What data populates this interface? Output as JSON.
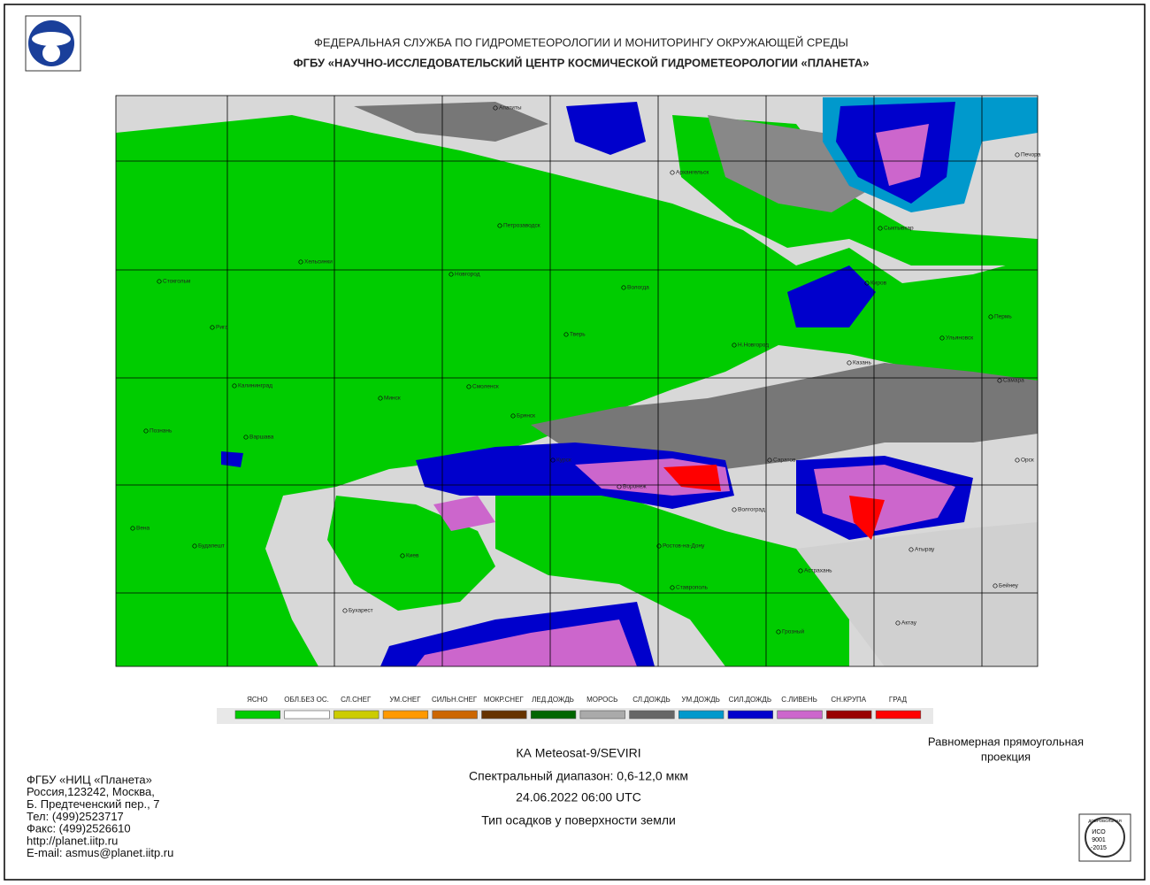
{
  "header": {
    "line1": "ФЕДЕРАЛЬНАЯ СЛУЖБА ПО ГИДРОМЕТЕОРОЛОГИИ И МОНИТОРИНГУ ОКРУЖАЮЩЕЙ СРЕДЫ",
    "line2": "ФГБУ «НАУЧНО-ИССЛЕДОВАТЕЛЬСКИЙ ЦЕНТР КОСМИЧЕСКОЙ ГИДРОМЕТЕОРОЛОГИИ «ПЛАНЕТА»"
  },
  "map": {
    "cities": [
      "Апатиты",
      "Архангельск",
      "Петрозаводск",
      "Вологда",
      "Сыктывкар",
      "Стокгольм",
      "Хельсинки",
      "Новгород",
      "Тверь",
      "Н.Новгород",
      "Киров",
      "Пермь",
      "Казань",
      "Калининград",
      "Минск",
      "Смоленск",
      "Брянск",
      "Ульяновск",
      "Самара",
      "Курск",
      "Воронеж",
      "Саратов",
      "Варшава",
      "Познань",
      "Волгоград",
      "Киев",
      "Астрахань",
      "Атырау",
      "Ростов-на-Дону",
      "Бухарест",
      "Грозный",
      "Актау",
      "Бейнеу",
      "Вена",
      "Будапешт",
      "Ставрополь",
      "Печора",
      "Рига",
      "Орск"
    ]
  },
  "legend": [
    {
      "label": "ЯСНО",
      "color": "#00cc00"
    },
    {
      "label": "ОБЛ.БЕЗ ОС.",
      "color": "#ffffff"
    },
    {
      "label": "СЛ.СНЕГ",
      "color": "#cccc00"
    },
    {
      "label": "УМ.СНЕГ",
      "color": "#ff9900"
    },
    {
      "label": "СИЛЬН.СНЕГ",
      "color": "#cc6600"
    },
    {
      "label": "МОКР.СНЕГ",
      "color": "#663300"
    },
    {
      "label": "ЛЕД.ДОЖДЬ",
      "color": "#006600"
    },
    {
      "label": "МОРОСЬ",
      "color": "#aaaaaa"
    },
    {
      "label": "СЛ.ДОЖДЬ",
      "color": "#666666"
    },
    {
      "label": "УМ.ДОЖДЬ",
      "color": "#0099cc"
    },
    {
      "label": "СИЛ.ДОЖДЬ",
      "color": "#0000cc"
    },
    {
      "label": "С.ЛИВЕНЬ",
      "color": "#cc66cc"
    },
    {
      "label": "СН.КРУПА",
      "color": "#990000"
    },
    {
      "label": "ГРАД",
      "color": "#ff0000"
    }
  ],
  "caption": {
    "satellite": "КА Meteosat-9/SEVIRI",
    "range": "Спектральный диапазон: 0,6-12,0 мкм",
    "datetime": "24.06.2022 06:00 UTC",
    "product": "Тип осадков у поверхности земли"
  },
  "projection": [
    "Равномерная прямоугольная",
    "проекция"
  ],
  "contacts": [
    "ФГБУ «НИЦ «Планета»",
    "Россия,123242, Москва,",
    "Б. Предтеченский пер., 7",
    "Тел:   (499)2523717",
    "Факс:  (499)2526610",
    "http://planet.iitp.ru",
    "E-mail: asmus@planet.iitp.ru"
  ],
  "iso": [
    "ДОБРОВОЛЬНАЯ",
    "ИСО",
    "9001",
    "-2015"
  ]
}
